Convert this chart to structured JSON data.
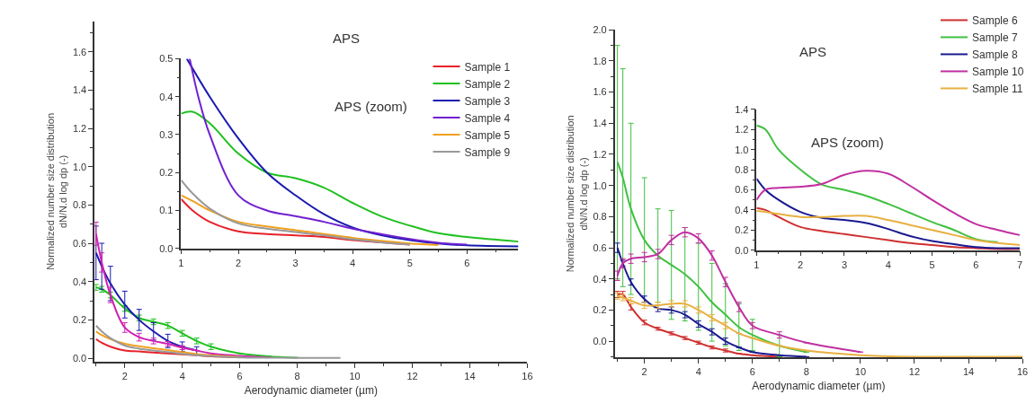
{
  "chart_data": [
    {
      "type": "line",
      "title": "APS",
      "xlabel": "Aerodynamic diameter (µm)",
      "ylabel": "Normalized number size distribution\ndN/N.d log dp (-)",
      "x": [
        1.0,
        1.2,
        1.5,
        2,
        2.5,
        3,
        3.5,
        4,
        4.5,
        5,
        6,
        7,
        8,
        9.5
      ],
      "series": [
        {
          "color": "#e8202a",
          "values": [
            0.1,
            0.08,
            0.06,
            0.04,
            0.035,
            0.03,
            0.025,
            0.02,
            0.015,
            0.01,
            0.005,
            null,
            null,
            null
          ]
        },
        {
          "color": "#20c020",
          "values": [
            0.37,
            0.36,
            0.33,
            0.26,
            0.21,
            0.19,
            0.17,
            0.13,
            0.09,
            0.06,
            0.025,
            0.01,
            0.003,
            null
          ],
          "errors": [
            0.015,
            0.015,
            0.015,
            0.015,
            0.015,
            0.015,
            0.015,
            0.015,
            0.015,
            0.015,
            null,
            null,
            null,
            null
          ]
        },
        {
          "color": "#1a1ab0",
          "values": [
            0.55,
            0.48,
            0.39,
            0.28,
            0.2,
            0.14,
            0.09,
            0.06,
            0.04,
            null,
            null,
            null,
            null,
            null
          ],
          "errors": [
            0.14,
            0.12,
            0.09,
            0.07,
            0.055,
            0.045,
            0.035,
            0.025,
            0.02,
            null,
            null,
            null,
            null,
            null
          ]
        },
        {
          "color": "#d020b0",
          "values": [
            0.65,
            0.5,
            0.33,
            0.16,
            0.11,
            0.09,
            0.075,
            0.055,
            0.04,
            0.025,
            0.012,
            0.004,
            null,
            null
          ],
          "errors": [
            0.06,
            0.05,
            0.04,
            0.025,
            0.02,
            0.015,
            0.012,
            0.01,
            null,
            null,
            null,
            null,
            null,
            null
          ]
        },
        {
          "color": "#f0a020",
          "values": [
            0.14,
            0.12,
            0.1,
            0.075,
            0.062,
            0.052,
            0.042,
            0.032,
            0.022,
            0.015,
            0.006,
            null,
            null,
            null
          ]
        },
        {
          "color": "#999999",
          "values": [
            0.17,
            0.14,
            0.105,
            0.066,
            0.05,
            0.04,
            0.032,
            0.023,
            0.016,
            0.011,
            0.004,
            0.003,
            0.002,
            0.001
          ]
        }
      ],
      "xlim": [
        0.95,
        16
      ],
      "xticks": [
        2,
        4,
        6,
        8,
        10,
        12,
        14,
        16
      ],
      "ylim": [
        -0.02,
        1.76
      ],
      "yticks": [
        {
          "value": 0,
          "label": "0.0"
        },
        {
          "value": 0.2,
          "label": "0.2"
        },
        {
          "value": 0.4,
          "label": "0.4"
        },
        {
          "value": 0.6,
          "label": "0.6"
        },
        {
          "value": 0.8,
          "label": "0.8"
        },
        {
          "value": 1.0,
          "label": "1.0"
        },
        {
          "value": 1.2,
          "label": "1.2"
        },
        {
          "value": 1.4,
          "label": "1.4"
        },
        {
          "value": 1.6,
          "label": "1.6"
        }
      ]
    },
    {
      "type": "line",
      "title": "APS (zoom)",
      "legend": "top right",
      "x": [
        1.0,
        1.2,
        1.5,
        2,
        2.5,
        3,
        3.5,
        4,
        4.5,
        5,
        5.5,
        6,
        6.9
      ],
      "series": [
        {
          "name": "Sample 1",
          "color": "#e8202a",
          "values": [
            0.13,
            0.1,
            0.07,
            0.045,
            0.038,
            0.034,
            0.03,
            0.022,
            0.016,
            0.01,
            null,
            null,
            null
          ]
        },
        {
          "name": "Sample 2",
          "color": "#20c020",
          "values": [
            0.355,
            0.36,
            0.33,
            0.25,
            0.2,
            0.185,
            0.16,
            0.12,
            0.085,
            0.06,
            0.04,
            0.03,
            0.018
          ]
        },
        {
          "name": "Sample 3",
          "color": "#1a1ab0",
          "x": [
            1.1,
            1.5,
            2,
            2.5,
            3,
            3.5,
            4,
            4.5,
            5,
            5.5,
            6,
            6.9
          ],
          "values": [
            0.5,
            0.4,
            0.29,
            0.2,
            0.14,
            0.09,
            0.055,
            0.035,
            0.022,
            0.013,
            0.008,
            0.005
          ]
        },
        {
          "name": "Sample 4",
          "color": "#7020d0",
          "x": [
            1.15,
            1.3,
            1.5,
            2,
            2.5,
            3,
            3.5,
            4,
            4.5,
            5,
            5.5,
            6
          ],
          "values": [
            0.5,
            0.4,
            0.3,
            0.14,
            0.1,
            0.085,
            0.07,
            0.052,
            0.038,
            0.025,
            0.015,
            0.01
          ]
        },
        {
          "name": "Sample 5",
          "color": "#f0a020",
          "values": [
            0.14,
            0.125,
            0.1,
            0.07,
            0.058,
            0.048,
            0.038,
            0.028,
            0.02,
            0.013,
            0.009,
            null,
            null
          ]
        },
        {
          "name": "Sample 9",
          "color": "#999999",
          "values": [
            0.18,
            0.145,
            0.105,
            0.066,
            0.052,
            0.043,
            0.034,
            0.024,
            0.016,
            0.01,
            null,
            null,
            null
          ]
        }
      ],
      "xlim": [
        1,
        6.9
      ],
      "xticks": [
        1,
        2,
        3,
        4,
        5,
        6
      ],
      "ylim": [
        0,
        0.5
      ],
      "yticks": [
        {
          "value": 0,
          "label": "0.0"
        },
        {
          "value": 0.1,
          "label": "0.1"
        },
        {
          "value": 0.2,
          "label": "0.2"
        },
        {
          "value": 0.3,
          "label": "0.3"
        },
        {
          "value": 0.4,
          "label": "0.4"
        },
        {
          "value": 0.5,
          "label": "0.5"
        }
      ]
    },
    {
      "type": "line",
      "title": "APS",
      "xlabel": "Aerodynamic diameter (µm)",
      "ylabel": "Normalized number size distribution\ndN/N.d log dp (-)",
      "x": [
        1.0,
        1.2,
        1.5,
        2,
        2.5,
        3,
        3.5,
        4,
        4.5,
        5,
        5.5,
        6,
        7,
        8,
        10,
        12,
        14,
        16
      ],
      "series": [
        {
          "color": "#d03030",
          "values": [
            0.3,
            0.3,
            0.22,
            0.12,
            0.08,
            0.05,
            0.02,
            -0.01,
            -0.04,
            -0.06,
            -0.08,
            -0.09,
            -0.1,
            null,
            null,
            null,
            null,
            null
          ],
          "errors": [
            0.02,
            0.02,
            0.02,
            0.015,
            0.01,
            0.01,
            0.01,
            0.01,
            0.01,
            0.01,
            null,
            null,
            null,
            null,
            null,
            null,
            null,
            null
          ]
        },
        {
          "color": "#40c040",
          "values": [
            1.15,
            1.05,
            0.85,
            0.65,
            0.55,
            0.49,
            0.43,
            0.35,
            0.25,
            0.17,
            0.09,
            0.04,
            -0.03,
            -0.07,
            null,
            null,
            null,
            null
          ],
          "errors": [
            0.75,
            0.7,
            0.55,
            0.4,
            0.3,
            0.35,
            0.3,
            0.28,
            0.25,
            0.2,
            0.15,
            0.1,
            0.07,
            null,
            null,
            null,
            null,
            null
          ]
        },
        {
          "color": "#1a1a90",
          "values": [
            0.6,
            0.5,
            0.38,
            0.27,
            0.21,
            0.2,
            0.17,
            0.11,
            0.06,
            0.0,
            -0.04,
            -0.07,
            -0.09,
            -0.1,
            null,
            null,
            null,
            null
          ],
          "errors": [
            0.03,
            0.02,
            0.02,
            0.02,
            0.02,
            0.02,
            0.02,
            0.02,
            0.02,
            0.02,
            null,
            null,
            null,
            null,
            null,
            null,
            null,
            null
          ]
        },
        {
          "color": "#c030a0",
          "values": [
            0.42,
            0.5,
            0.53,
            0.54,
            0.56,
            0.65,
            0.7,
            0.66,
            0.55,
            0.38,
            0.22,
            0.1,
            0.04,
            -0.01,
            -0.07,
            null,
            null,
            null
          ],
          "errors": [
            0.03,
            0.03,
            0.03,
            0.03,
            0.03,
            0.03,
            0.03,
            0.03,
            0.03,
            0.03,
            0.03,
            0.02,
            0.02,
            null,
            null,
            null,
            null,
            null
          ]
        },
        {
          "color": "#e8b040",
          "values": [
            0.29,
            0.28,
            0.26,
            0.23,
            0.23,
            0.24,
            0.24,
            0.2,
            0.15,
            0.1,
            0.05,
            0.02,
            -0.03,
            -0.06,
            -0.09,
            -0.1,
            -0.1,
            -0.1
          ],
          "errors": [
            0.02,
            0.02,
            0.02,
            0.02,
            0.02,
            0.02,
            0.02,
            0.02,
            0.02,
            0.02,
            null,
            null,
            null,
            null,
            null,
            null,
            null,
            null
          ]
        }
      ],
      "xlim": [
        0.9,
        16
      ],
      "xticks": [
        2,
        4,
        6,
        8,
        10,
        12,
        14,
        16
      ],
      "ylim": [
        -0.106,
        2.0
      ],
      "yticks": [
        {
          "value": 0,
          "label": "0.0"
        },
        {
          "value": 0.2,
          "label": "0.2"
        },
        {
          "value": 0.4,
          "label": "0.4"
        },
        {
          "value": 0.6,
          "label": "0.6"
        },
        {
          "value": 0.8,
          "label": "0.8"
        },
        {
          "value": 1.0,
          "label": "1.0"
        },
        {
          "value": 1.2,
          "label": "1.2"
        },
        {
          "value": 1.4,
          "label": "1.4"
        },
        {
          "value": 1.6,
          "label": "1.6"
        },
        {
          "value": 1.8,
          "label": "1.8"
        },
        {
          "value": 2.0,
          "label": "2.0"
        }
      ]
    },
    {
      "type": "line",
      "title": "APS (zoom)",
      "legend": "top right",
      "x": [
        1.0,
        1.2,
        1.5,
        2,
        2.5,
        3,
        3.5,
        4,
        4.5,
        5,
        5.5,
        6,
        6.5,
        7
      ],
      "series": [
        {
          "name": "Sample 6",
          "color": "#d03030",
          "values": [
            0.42,
            0.4,
            0.33,
            0.23,
            0.19,
            0.16,
            0.13,
            0.1,
            0.07,
            0.05,
            0.03,
            0.02,
            0.01,
            0.01
          ]
        },
        {
          "name": "Sample 7",
          "color": "#40c040",
          "values": [
            1.24,
            1.2,
            1.0,
            0.8,
            0.65,
            0.6,
            0.54,
            0.46,
            0.37,
            0.28,
            0.2,
            0.11,
            0.08,
            null
          ]
        },
        {
          "name": "Sample 8",
          "color": "#1a1a90",
          "values": [
            0.71,
            0.6,
            0.5,
            0.38,
            0.32,
            0.3,
            0.27,
            0.21,
            0.14,
            0.09,
            0.06,
            0.03,
            0.02,
            0.02
          ]
        },
        {
          "name": "Sample 10",
          "color": "#c030a0",
          "values": [
            0.5,
            0.6,
            0.62,
            0.63,
            0.66,
            0.75,
            0.79,
            0.76,
            0.64,
            0.5,
            0.37,
            0.26,
            0.2,
            0.15
          ]
        },
        {
          "name": "Sample 11",
          "color": "#e8b040",
          "values": [
            0.39,
            0.38,
            0.36,
            0.33,
            0.33,
            0.34,
            0.34,
            0.3,
            0.25,
            0.2,
            0.15,
            0.1,
            0.07,
            0.05
          ]
        }
      ],
      "xlim": [
        1,
        7
      ],
      "xticks": [
        1,
        2,
        3,
        4,
        5,
        6,
        7
      ],
      "ylim": [
        0,
        1.4
      ],
      "yticks": [
        {
          "value": 0,
          "label": "0.0"
        },
        {
          "value": 0.2,
          "label": "0.2"
        },
        {
          "value": 0.4,
          "label": "0.4"
        },
        {
          "value": 0.6,
          "label": "0.6"
        },
        {
          "value": 0.8,
          "label": "0.8"
        },
        {
          "value": 1.0,
          "label": "1.0"
        },
        {
          "value": 1.2,
          "label": "1.2"
        },
        {
          "value": 1.4,
          "label": "1.4"
        }
      ]
    }
  ]
}
